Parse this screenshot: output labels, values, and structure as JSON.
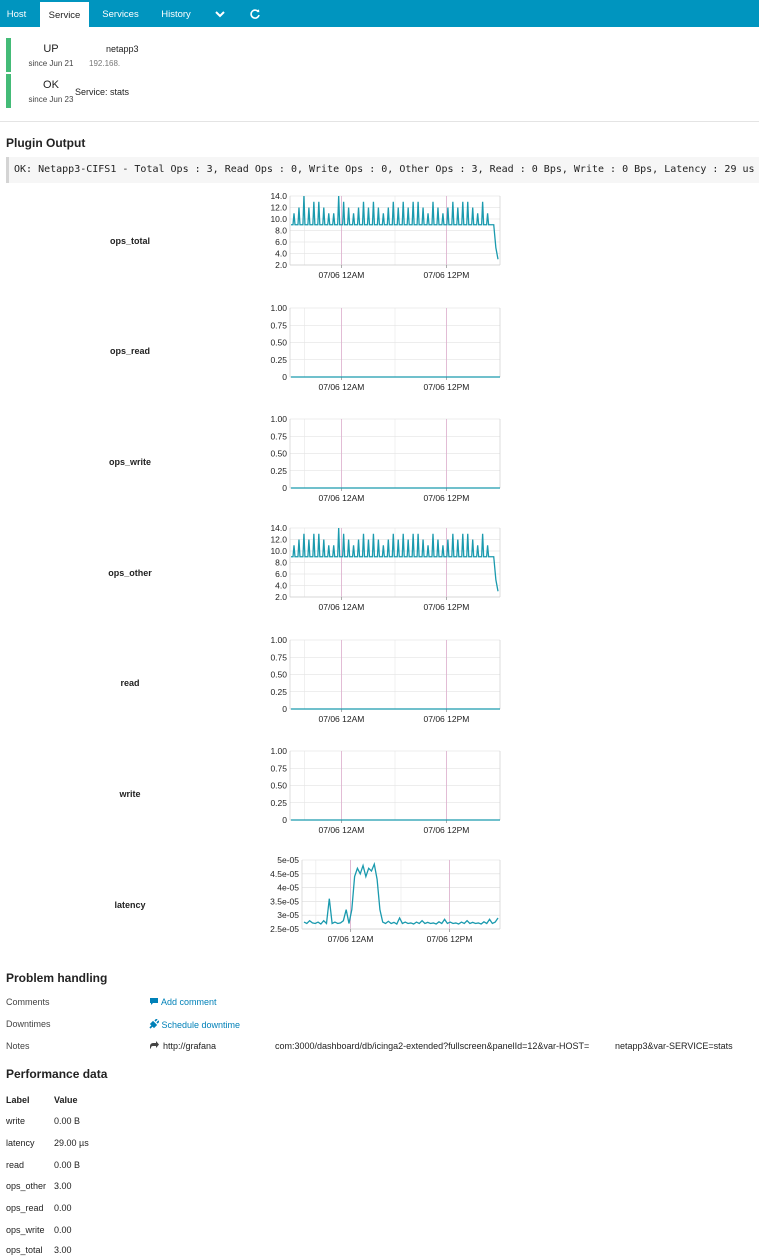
{
  "tabs": [
    {
      "label": "Host",
      "active": false
    },
    {
      "label": "Service",
      "active": true
    },
    {
      "label": "Services",
      "active": false
    },
    {
      "label": "History",
      "active": false
    }
  ],
  "tab_icons": [
    "chevron-down-icon",
    "refresh-icon"
  ],
  "header": {
    "host": {
      "state": "UP",
      "since": "since Jun 21",
      "name": "netapp3",
      "address": "192.168."
    },
    "service": {
      "state": "OK",
      "since": "since Jun 23",
      "name": "Service: stats"
    },
    "status_color": "#44bb77"
  },
  "plugin_output": {
    "title": "Plugin Output",
    "text": "OK: Netapp3-CIFS1 - Total Ops : 3, Read Ops : 0, Write Ops : 0, Other Ops : 3, Read : 0 Bps, Write : 0 Bps, Latency : 29 us"
  },
  "graph_labels": [
    "ops_total",
    "ops_read",
    "ops_write",
    "ops_other",
    "read",
    "write",
    "latency"
  ],
  "chart_data": [
    {
      "type": "line",
      "title": "ops_total",
      "x_ticks": [
        "07/06 12AM",
        "07/06 12PM"
      ],
      "y_ticks": [
        "14.0",
        "12.0",
        "10.0",
        "8.0",
        "6.0",
        "4.0",
        "2.0"
      ],
      "ylim": [
        2,
        14
      ],
      "baseline": 9,
      "spikes": [
        11,
        12,
        14,
        12,
        13,
        13,
        12,
        11,
        11,
        14,
        13,
        12,
        11,
        12,
        13,
        12,
        13,
        12,
        11,
        12,
        13,
        12,
        13,
        12,
        13,
        13,
        12,
        11,
        13,
        12,
        11,
        12,
        13,
        12,
        13,
        13,
        12,
        11,
        13,
        11
      ],
      "end_values": [
        9,
        5,
        3
      ],
      "grid": true,
      "color": "#1a9aae"
    },
    {
      "type": "line",
      "title": "ops_read",
      "x_ticks": [
        "07/06 12AM",
        "07/06 12PM"
      ],
      "y_ticks": [
        "1.00",
        "0.75",
        "0.50",
        "0.25",
        "0"
      ],
      "ylim": [
        0,
        1
      ],
      "baseline": 0,
      "spikes": [],
      "end_values": [],
      "grid": true,
      "color": "#1a9aae"
    },
    {
      "type": "line",
      "title": "ops_write",
      "x_ticks": [
        "07/06 12AM",
        "07/06 12PM"
      ],
      "y_ticks": [
        "1.00",
        "0.75",
        "0.50",
        "0.25",
        "0"
      ],
      "ylim": [
        0,
        1
      ],
      "baseline": 0,
      "spikes": [],
      "end_values": [],
      "grid": true,
      "color": "#1a9aae"
    },
    {
      "type": "line",
      "title": "ops_other",
      "x_ticks": [
        "07/06 12AM",
        "07/06 12PM"
      ],
      "y_ticks": [
        "14.0",
        "12.0",
        "10.0",
        "8.0",
        "6.0",
        "4.0",
        "2.0"
      ],
      "ylim": [
        2,
        14
      ],
      "baseline": 9,
      "spikes": [
        11,
        12,
        13,
        12,
        13,
        13,
        12,
        11,
        11,
        14,
        13,
        12,
        11,
        12,
        13,
        12,
        13,
        12,
        11,
        12,
        13,
        12,
        13,
        12,
        13,
        13,
        12,
        11,
        13,
        12,
        11,
        12,
        13,
        12,
        13,
        13,
        12,
        11,
        13,
        11
      ],
      "end_values": [
        9,
        5,
        3
      ],
      "grid": true,
      "color": "#1a9aae"
    },
    {
      "type": "line",
      "title": "read",
      "x_ticks": [
        "07/06 12AM",
        "07/06 12PM"
      ],
      "y_ticks": [
        "1.00",
        "0.75",
        "0.50",
        "0.25",
        "0"
      ],
      "ylim": [
        0,
        1
      ],
      "baseline": 0,
      "spikes": [],
      "end_values": [],
      "grid": true,
      "color": "#1a9aae"
    },
    {
      "type": "line",
      "title": "write",
      "x_ticks": [
        "07/06 12AM",
        "07/06 12PM"
      ],
      "y_ticks": [
        "1.00",
        "0.75",
        "0.50",
        "0.25",
        "0"
      ],
      "ylim": [
        0,
        1
      ],
      "baseline": 0,
      "spikes": [],
      "end_values": [],
      "grid": true,
      "color": "#1a9aae"
    },
    {
      "type": "line",
      "title": "latency",
      "x_ticks": [
        "07/06 12AM",
        "07/06 12PM"
      ],
      "y_ticks": [
        "5e-05",
        "4.5e-05",
        "4e-05",
        "3.5e-05",
        "3e-05",
        "2.5e-05"
      ],
      "ylim": [
        2.5e-05,
        5e-05
      ],
      "values": [
        2.75e-05,
        2.7e-05,
        2.8e-05,
        2.72e-05,
        2.7e-05,
        2.75e-05,
        2.68e-05,
        2.8e-05,
        2.7e-05,
        3.6e-05,
        2.7e-05,
        2.75e-05,
        2.7e-05,
        2.72e-05,
        2.8e-05,
        3.2e-05,
        2.7e-05,
        3.2e-05,
        4.4e-05,
        4.7e-05,
        4.5e-05,
        4.8e-05,
        4.4e-05,
        4.7e-05,
        4.6e-05,
        4.85e-05,
        4.3e-05,
        3.2e-05,
        2.75e-05,
        2.7e-05,
        2.78e-05,
        2.7e-05,
        2.74e-05,
        2.68e-05,
        2.9e-05,
        2.7e-05,
        2.75e-05,
        2.7e-05,
        2.72e-05,
        2.68e-05,
        2.75e-05,
        2.7e-05,
        2.8e-05,
        2.7e-05,
        2.74e-05,
        2.7e-05,
        2.72e-05,
        2.68e-05,
        2.76e-05,
        2.7e-05,
        2.85e-05,
        2.7e-05,
        2.75e-05,
        2.7e-05,
        2.72e-05,
        2.68e-05,
        2.75e-05,
        2.7e-05,
        2.8e-05,
        2.7e-05,
        2.74e-05,
        2.7e-05,
        2.72e-05,
        2.68e-05,
        2.76e-05,
        2.7e-05,
        2.85e-05,
        2.7e-05,
        2.75e-05,
        2.9e-05
      ],
      "grid": true,
      "color": "#1a9aae"
    }
  ],
  "problem_handling": {
    "title": "Problem handling",
    "comments": {
      "label": "Comments",
      "action": "Add comment"
    },
    "downtimes": {
      "label": "Downtimes",
      "action": "Schedule downtime"
    },
    "notes": {
      "label": "Notes",
      "link_start": "http://grafana",
      "link_mid": "com:3000/dashboard/db/icinga2-extended?fullscreen&panelId=12&var-HOST=",
      "link_end": "netapp3&var-SERVICE=stats"
    }
  },
  "performance_data": {
    "title": "Performance data",
    "headers": [
      "Label",
      "Value"
    ],
    "rows": [
      [
        "write",
        "0.00 B"
      ],
      [
        "latency",
        "29.00 µs"
      ],
      [
        "read",
        "0.00 B"
      ],
      [
        "ops_other",
        "3.00"
      ],
      [
        "ops_read",
        "0.00"
      ],
      [
        "ops_write",
        "0.00"
      ],
      [
        "ops_total",
        "3.00"
      ]
    ]
  }
}
